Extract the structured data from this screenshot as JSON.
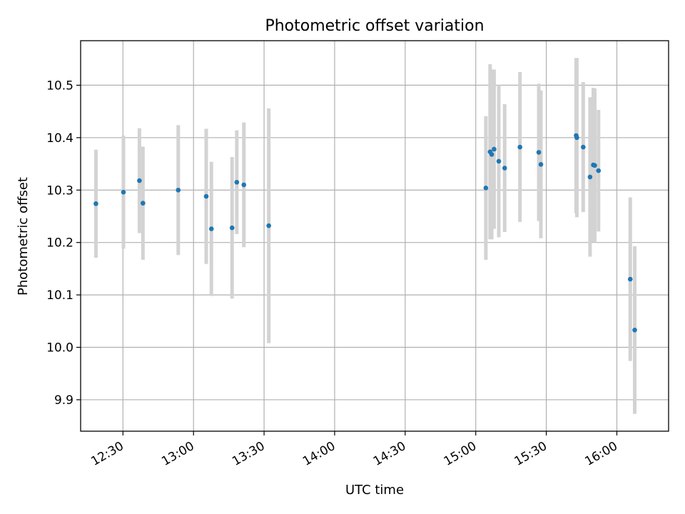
{
  "chart_data": {
    "type": "scatter",
    "title": "Photometric offset variation",
    "xlabel": "UTC time",
    "ylabel": "Photometric offset",
    "xlim": [
      "12:12",
      "16:22"
    ],
    "ylim": [
      9.84,
      10.585
    ],
    "grid": true,
    "x_ticks": [
      "12:30",
      "13:00",
      "13:30",
      "14:00",
      "14:30",
      "15:00",
      "15:30",
      "16:00"
    ],
    "y_ticks": [
      "9.9",
      "10.0",
      "10.1",
      "10.2",
      "10.3",
      "10.4",
      "10.5"
    ],
    "colors": {
      "point": "#1f77b4",
      "errorbar": "#d3d3d3",
      "grid": "#b0b0b0"
    },
    "points": [
      {
        "x": "12:18.5",
        "y": 10.274,
        "yerr": 0.103
      },
      {
        "x": "12:30.2",
        "y": 10.296,
        "yerr": 0.108
      },
      {
        "x": "12:37.0",
        "y": 10.318,
        "yerr": 0.1
      },
      {
        "x": "12:38.5",
        "y": 10.275,
        "yerr": 0.108
      },
      {
        "x": "12:53.5",
        "y": 10.3,
        "yerr": 0.124
      },
      {
        "x": "13:05.4",
        "y": 10.288,
        "yerr": 0.129
      },
      {
        "x": "13:07.6",
        "y": 10.226,
        "yerr": 0.128
      },
      {
        "x": "13:16.4",
        "y": 10.228,
        "yerr": 0.135
      },
      {
        "x": "13:18.4",
        "y": 10.315,
        "yerr": 0.099
      },
      {
        "x": "13:21.4",
        "y": 10.31,
        "yerr": 0.119
      },
      {
        "x": "13:32.0",
        "y": 10.232,
        "yerr": 0.224
      },
      {
        "x": "15:04.3",
        "y": 10.304,
        "yerr": 0.137
      },
      {
        "x": "15:06.1",
        "y": 10.373,
        "yerr": 0.167
      },
      {
        "x": "15:06.8",
        "y": 10.368,
        "yerr": 0.162
      },
      {
        "x": "15:07.8",
        "y": 10.378,
        "yerr": 0.152
      },
      {
        "x": "15:09.8",
        "y": 10.355,
        "yerr": 0.145
      },
      {
        "x": "15:12.3",
        "y": 10.342,
        "yerr": 0.122
      },
      {
        "x": "15:18.8",
        "y": 10.382,
        "yerr": 0.143
      },
      {
        "x": "15:26.8",
        "y": 10.372,
        "yerr": 0.131
      },
      {
        "x": "15:27.7",
        "y": 10.349,
        "yerr": 0.141
      },
      {
        "x": "15:42.7",
        "y": 10.404,
        "yerr": 0.148
      },
      {
        "x": "15:43.0",
        "y": 10.4,
        "yerr": 0.152
      },
      {
        "x": "15:45.7",
        "y": 10.382,
        "yerr": 0.124
      },
      {
        "x": "15:48.6",
        "y": 10.325,
        "yerr": 0.152
      },
      {
        "x": "15:50.0",
        "y": 10.348,
        "yerr": 0.147
      },
      {
        "x": "15:50.6",
        "y": 10.347,
        "yerr": 0.147
      },
      {
        "x": "15:52.2",
        "y": 10.337,
        "yerr": 0.116
      },
      {
        "x": "16:05.7",
        "y": 10.13,
        "yerr": 0.156
      },
      {
        "x": "16:07.6",
        "y": 10.033,
        "yerr": 0.16
      }
    ]
  }
}
